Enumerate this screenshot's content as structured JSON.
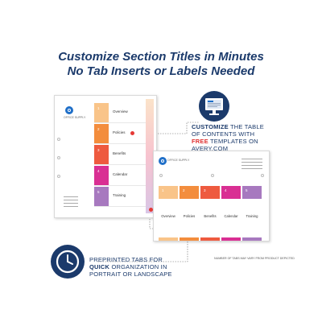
{
  "headline": {
    "line1": "Customize Section Titles in Minutes",
    "line2": "No Tab Inserts or Labels Needed"
  },
  "callouts": {
    "customize": {
      "icon": "monitor-template-icon",
      "line1_bold": "CUSTOMIZE",
      "line1_rest": " THE TABLE",
      "line2": "OF CONTENTS WITH",
      "line3_highlight": "FREE",
      "line3_rest": " TEMPLATES ON",
      "line4": "AVERY.COM"
    },
    "preprinted": {
      "icon": "clock-icon",
      "line1": "PREPRINTED TABS FOR",
      "line2_bold": "QUICK",
      "line2_rest": " ORGANIZATION IN",
      "line3": "PORTRAIT OR LANDSCAPE"
    }
  },
  "brand": {
    "portrait": "OFFICE SUPPLY",
    "landscape": "OFFICE SUPPLY"
  },
  "tabs": [
    {
      "number": "1",
      "title": "Overview",
      "color": "#f9c489"
    },
    {
      "number": "2",
      "title": "Policies",
      "color": "#f38d3d"
    },
    {
      "number": "3",
      "title": "Benefits",
      "color": "#ee5a3f"
    },
    {
      "number": "4",
      "title": "Calendar",
      "color": "#d92f93"
    },
    {
      "number": "5",
      "title": "Training",
      "color": "#a779bf"
    }
  ],
  "disclaimer": "NUMBER OF TABS MAY VARY FROM PRODUCT DEPICTED",
  "colors": {
    "headline": "#1b3a6b",
    "accent_red": "#e53935",
    "logo_blue": "#1f6fc8"
  }
}
